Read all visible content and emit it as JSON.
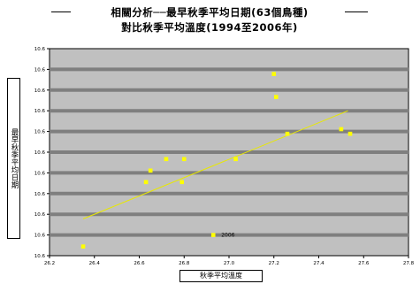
{
  "chart_data": {
    "type": "scatter",
    "title": "相關分析──最早秋季平均日期(63個鳥種)",
    "subtitle": "對比秋季平均溫度(1994至2006年)",
    "xlabel": "秋季平均溫度",
    "ylabel": "最早秋季平均日期",
    "xlim": [
      26.2,
      27.8
    ],
    "ylim": [
      1.6,
      10.6
    ],
    "x_ticks": [
      "26.2",
      "26.4",
      "26.6",
      "26.8",
      "27.0",
      "27.2",
      "27.4",
      "27.6",
      "27.8"
    ],
    "y_ticks": [
      "10.6",
      "10.6",
      "10.6",
      "10.6",
      "10.6",
      "10.6",
      "10.6",
      "10.6",
      "10.6",
      "10.6",
      "10.6"
    ],
    "grid": true,
    "points": [
      {
        "x": 26.35,
        "y": 2.0
      },
      {
        "x": 26.63,
        "y": 4.8
      },
      {
        "x": 26.65,
        "y": 5.3
      },
      {
        "x": 26.72,
        "y": 5.8
      },
      {
        "x": 26.79,
        "y": 4.8
      },
      {
        "x": 26.8,
        "y": 5.8
      },
      {
        "x": 26.93,
        "y": 2.5
      },
      {
        "x": 27.03,
        "y": 5.8
      },
      {
        "x": 27.2,
        "y": 9.5
      },
      {
        "x": 27.21,
        "y": 8.5
      },
      {
        "x": 27.26,
        "y": 6.9
      },
      {
        "x": 27.5,
        "y": 7.1
      },
      {
        "x": 27.54,
        "y": 6.9
      }
    ],
    "annotation": {
      "text": "2006",
      "x": 26.93,
      "y": 2.5
    },
    "trendline": {
      "x": [
        26.35,
        27.53
      ],
      "y": [
        3.2,
        7.9
      ]
    },
    "colors": {
      "plot_bg": "#c0c0c0",
      "marker": "#ffff00",
      "trend": "#e8e800",
      "grid": "#7f7f7f"
    }
  }
}
